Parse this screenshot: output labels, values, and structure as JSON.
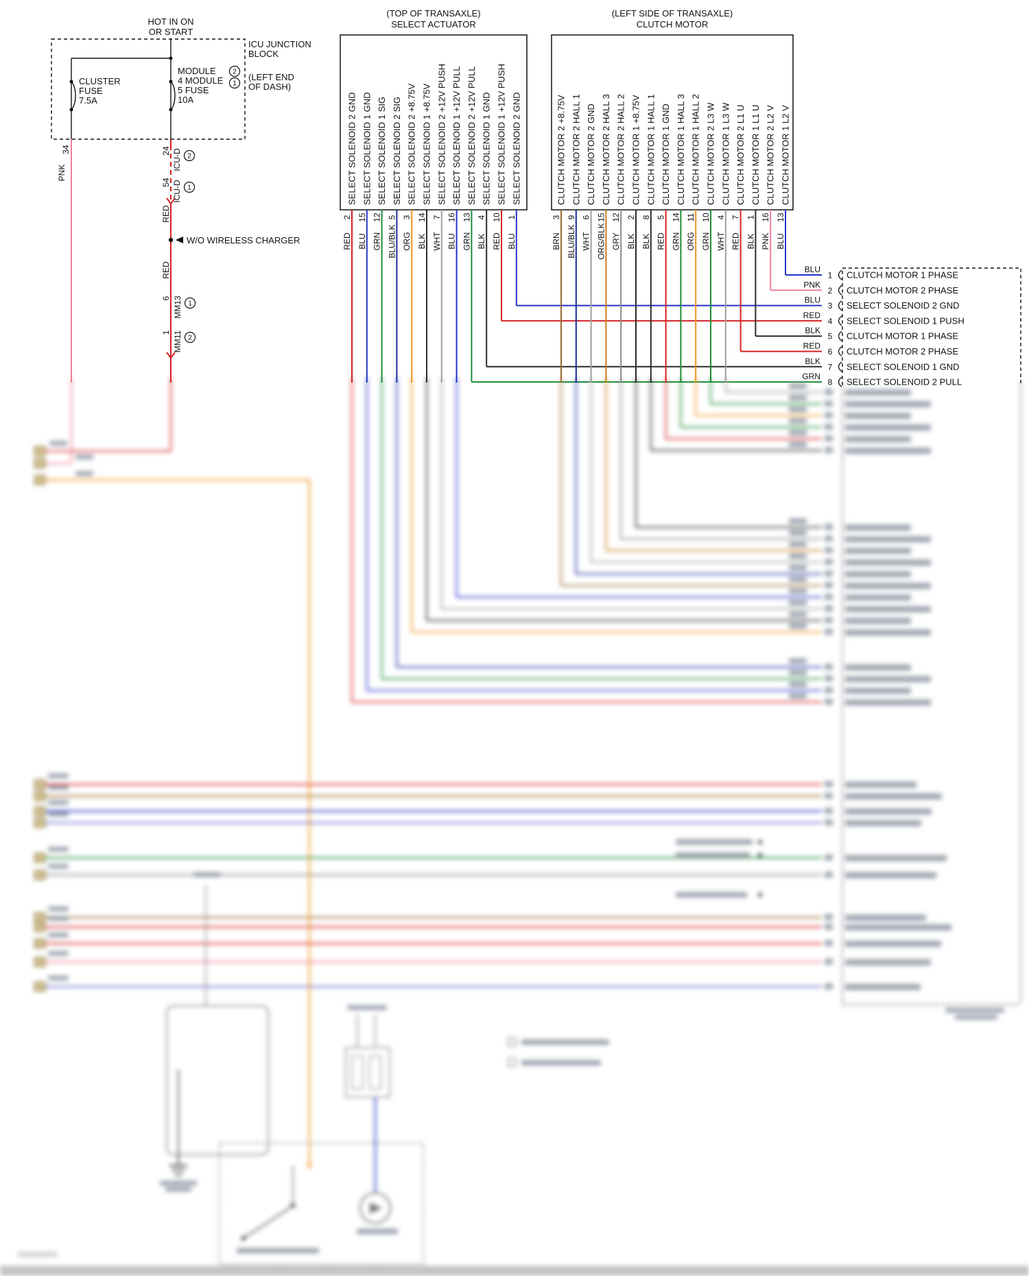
{
  "palette": {
    "RED": "#d42222",
    "BLU": "#2333c8",
    "GRN": "#1c8c35",
    "ORG": "#f0931e",
    "BLK": "#2a2a2a",
    "WHT": "#9e9e9e",
    "PNK": "#f08098",
    "BRN": "#9a6b2f",
    "GRY": "#8a8a8a",
    "BLU/BLK": "#1a2a9e",
    "ORG/BLK": "#c87c14",
    "diagram_ink": "#111111",
    "blur_text": "#8f98a4",
    "tan_connector": "#cdbd8e"
  },
  "power_block": {
    "hot_line1": "HOT IN ON",
    "hot_line2": "OR START",
    "block_line1": "ICU JUNCTION",
    "block_line2": "BLOCK",
    "loc_line1": "(LEFT END",
    "loc_line2": "OF DASH)",
    "fuse1_line1": "CLUSTER",
    "fuse1_line2": "FUSE",
    "fuse1_line3": "7.5A",
    "fuse2_line1": "MODULE",
    "fuse2_line2": "4 MODULE",
    "fuse2_line3": "5 FUSE",
    "fuse2_line4": "10A",
    "callout_a": "2",
    "callout_b": "1"
  },
  "icu_branch": {
    "pin_34": "34",
    "color_pnk": "PNK",
    "pin_24": "24",
    "conn_1": "ICU-D",
    "callout_1": "2",
    "pin_54": "54",
    "conn_2": "ICU-D",
    "callout_2": "1",
    "color_red_1": "RED",
    "note_charger": "W/O WIRELESS CHARGER",
    "color_red_2": "RED",
    "pin_6": "6",
    "conn_3": "MM13",
    "callout_3": "1",
    "pin_1": "1",
    "conn_4": "MM11",
    "callout_4": "2"
  },
  "select_actuator": {
    "title_line1": "(TOP OF TRANSAXLE)",
    "title_line2": "SELECT ACTUATOR",
    "pins": [
      {
        "label": "SELECT SOLENOID 2 GND",
        "pin": "2",
        "color": "RED"
      },
      {
        "label": "SELECT SOLENOID 1 GND",
        "pin": "15",
        "color": "BLU"
      },
      {
        "label": "SELECT SOLENOID 1 SIG",
        "pin": "12",
        "color": "GRN"
      },
      {
        "label": "SELECT SOLENOID 2 SIG",
        "pin": "5",
        "color": "BLU/BLK"
      },
      {
        "label": "SELECT SOLENOID 2 +8.75V",
        "pin": "3",
        "color": "ORG"
      },
      {
        "label": "SELECT SOLENOID 1 +8.75V",
        "pin": "14",
        "color": "BLK"
      },
      {
        "label": "SELECT SOLENOID 2 +12V PUSH",
        "pin": "7",
        "color": "WHT"
      },
      {
        "label": "SELECT SOLENOID 1 +12V PULL",
        "pin": "16",
        "color": "BLU"
      },
      {
        "label": "SELECT SOLENOID 2 +12V PULL",
        "pin": "13",
        "color": "GRN"
      },
      {
        "label": "SELECT SOLENOID 1 GND",
        "pin": "4",
        "color": "BLK"
      },
      {
        "label": "SELECT SOLENOID 1 +12V PUSH",
        "pin": "10",
        "color": "RED"
      },
      {
        "label": "SELECT SOLENOID 2 GND",
        "pin": "1",
        "color": "BLU"
      }
    ]
  },
  "clutch_motor": {
    "title_line1": "(LEFT SIDE OF TRANSAXLE)",
    "title_line2": "CLUTCH MOTOR",
    "pins": [
      {
        "label": "CLUTCH MOTOR 2 +8.75V",
        "pin": "3",
        "color": "BRN"
      },
      {
        "label": "CLUTCH MOTOR 2 HALL 1",
        "pin": "9",
        "color": "BLU/BLK"
      },
      {
        "label": "CLUTCH MOTOR 2 GND",
        "pin": "6",
        "color": "WHT"
      },
      {
        "label": "CLUTCH MOTOR 2 HALL 3",
        "pin": "15",
        "color": "ORG/BLK"
      },
      {
        "label": "CLUTCH MOTOR 2 HALL 2",
        "pin": "12",
        "color": "GRY"
      },
      {
        "label": "CLUTCH MOTOR 1 +8.75V",
        "pin": "2",
        "color": "BLK"
      },
      {
        "label": "CLUTCH MOTOR 1 HALL 1",
        "pin": "8",
        "color": "BLK"
      },
      {
        "label": "CLUTCH MOTOR 1 GND",
        "pin": "5",
        "color": "RED"
      },
      {
        "label": "CLUTCH MOTOR 1 HALL 3",
        "pin": "14",
        "color": "GRN"
      },
      {
        "label": "CLUTCH MOTOR 1 HALL 2",
        "pin": "11",
        "color": "ORG"
      },
      {
        "label": "CLUTCH MOTOR 2 L3 W",
        "pin": "10",
        "color": "GRN"
      },
      {
        "label": "CLUTCH MOTOR 1 L3 W",
        "pin": "4",
        "color": "WHT"
      },
      {
        "label": "CLUTCH MOTOR 2 L1 U",
        "pin": "7",
        "color": "RED"
      },
      {
        "label": "CLUTCH MOTOR 1 L1 U",
        "pin": "1",
        "color": "BLK"
      },
      {
        "label": "CLUTCH MOTOR 2 L2 V",
        "pin": "16",
        "color": "PNK"
      },
      {
        "label": "CLUTCH MOTOR 1 L2 V",
        "pin": "13",
        "color": "BLU"
      }
    ]
  },
  "right_connector": {
    "rows": [
      {
        "color": "BLU",
        "pin": "1",
        "label": "CLUTCH MOTOR 1 PHASE",
        "src": {
          "conn": "cm",
          "idx": 15
        }
      },
      {
        "color": "PNK",
        "pin": "2",
        "label": "CLUTCH MOTOR 2 PHASE",
        "src": {
          "conn": "cm",
          "idx": 14
        }
      },
      {
        "color": "BLU",
        "pin": "3",
        "label": "SELECT SOLENOID 2 GND",
        "src": {
          "conn": "sa",
          "idx": 11
        }
      },
      {
        "color": "RED",
        "pin": "4",
        "label": "SELECT SOLENOID 1 PUSH",
        "src": {
          "conn": "sa",
          "idx": 10
        }
      },
      {
        "color": "BLK",
        "pin": "5",
        "label": "CLUTCH MOTOR 1 PHASE",
        "src": {
          "conn": "cm",
          "idx": 13
        }
      },
      {
        "color": "RED",
        "pin": "6",
        "label": "CLUTCH MOTOR 2 PHASE",
        "src": {
          "conn": "cm",
          "idx": 12
        }
      },
      {
        "color": "BLK",
        "pin": "7",
        "label": "SELECT SOLENOID 1 GND",
        "src": {
          "conn": "sa",
          "idx": 9
        }
      },
      {
        "color": "GRN",
        "pin": "8",
        "label": "SELECT SOLENOID 2 PULL",
        "src": {
          "conn": "sa",
          "idx": 8
        }
      }
    ]
  }
}
